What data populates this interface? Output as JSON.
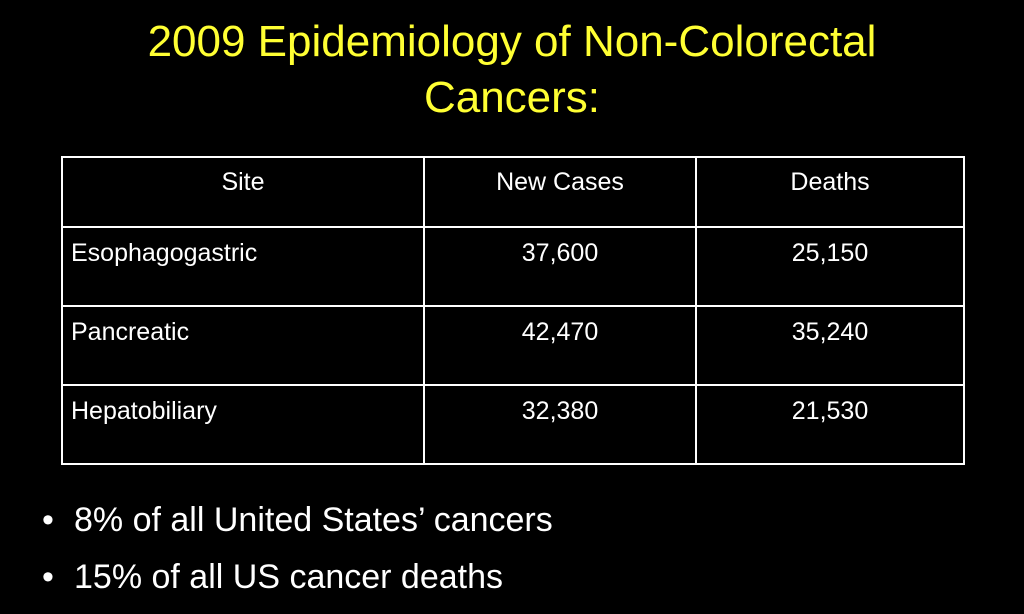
{
  "slide": {
    "title_line1": "2009 Epidemiology of Non-Colorectal",
    "title_line2": "Cancers:",
    "title_color": "#ffff33",
    "background_color": "#000000"
  },
  "table": {
    "headers": [
      "Site",
      "New Cases",
      "Deaths"
    ],
    "rows": [
      {
        "site": "Esophagogastric",
        "new_cases": "37,600",
        "deaths": "25,150"
      },
      {
        "site": "Pancreatic",
        "new_cases": "42,470",
        "deaths": "35,240"
      },
      {
        "site": "Hepatobiliary",
        "new_cases": "32,380",
        "deaths": "21,530"
      }
    ]
  },
  "bullets": [
    {
      "marker": "•",
      "text": "8% of all United States’ cancers"
    },
    {
      "marker": "•",
      "text": "15% of all US cancer deaths"
    }
  ]
}
